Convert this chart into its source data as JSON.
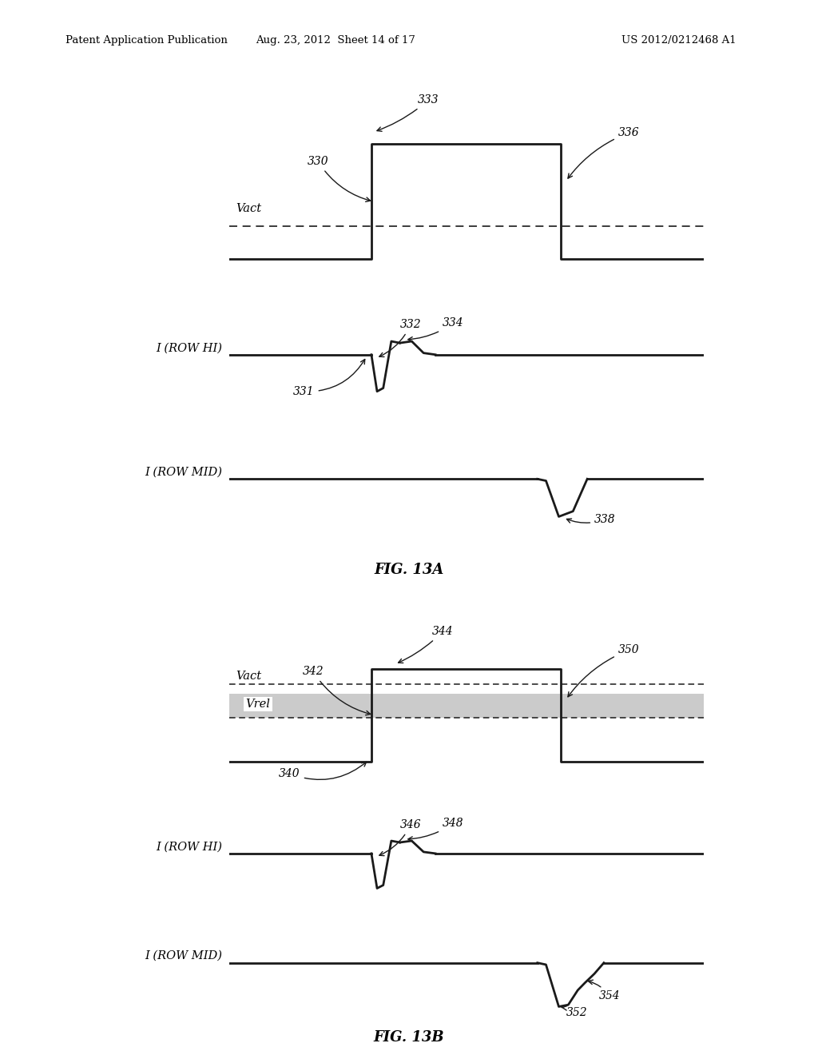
{
  "header_left": "Patent Application Publication",
  "header_mid": "Aug. 23, 2012  Sheet 14 of 17",
  "header_right": "US 2012/0212468 A1",
  "fig13a_title": "FIG. 13A",
  "fig13b_title": "FIG. 13B",
  "bg_color": "#ffffff",
  "line_color": "#1a1a1a",
  "shade_color": "#b0b0b0"
}
